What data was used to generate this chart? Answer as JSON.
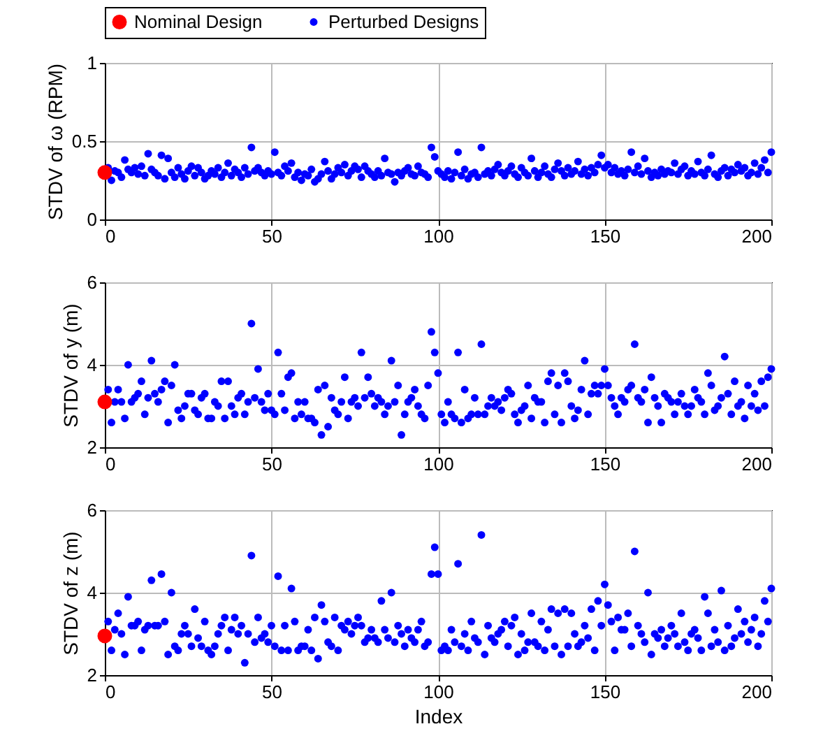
{
  "chart_data": [
    {
      "type": "scatter",
      "ylabel": "STDV of ω (RPM)",
      "xlim": [
        0,
        200
      ],
      "xticks": [
        0,
        50,
        100,
        150,
        200
      ],
      "ylim": [
        0,
        1
      ],
      "yticks": [
        0,
        0.5,
        1
      ],
      "grid": true,
      "legend": "top",
      "marker": "circle",
      "series": [
        {
          "name": "Nominal Design",
          "color": "#ff0000",
          "x": [
            0
          ],
          "values": [
            0.3
          ]
        },
        {
          "name": "Perturbed Designs",
          "color": "#0000ff",
          "x": [
            1,
            2,
            3,
            4,
            5,
            6,
            7,
            8,
            9,
            10,
            11,
            12,
            13,
            14,
            15,
            16,
            17,
            18,
            19,
            20,
            21,
            22,
            23,
            24,
            25,
            26,
            27,
            28,
            29,
            30,
            31,
            32,
            33,
            34,
            35,
            36,
            37,
            38,
            39,
            40,
            41,
            42,
            43,
            44,
            45,
            46,
            47,
            48,
            49,
            50,
            51,
            52,
            53,
            54,
            55,
            56,
            57,
            58,
            59,
            60,
            61,
            62,
            63,
            64,
            65,
            66,
            67,
            68,
            69,
            70,
            71,
            72,
            73,
            74,
            75,
            76,
            77,
            78,
            79,
            80,
            81,
            82,
            83,
            84,
            85,
            86,
            87,
            88,
            89,
            90,
            91,
            92,
            93,
            94,
            95,
            96,
            97,
            98,
            99,
            100,
            101,
            102,
            103,
            104,
            105,
            106,
            107,
            108,
            109,
            110,
            111,
            112,
            113,
            114,
            115,
            116,
            117,
            118,
            119,
            120,
            121,
            122,
            123,
            124,
            125,
            126,
            127,
            128,
            129,
            130,
            131,
            132,
            133,
            134,
            135,
            136,
            137,
            138,
            139,
            140,
            141,
            142,
            143,
            144,
            145,
            146,
            147,
            148,
            149,
            150,
            151,
            152,
            153,
            154,
            155,
            156,
            157,
            158,
            159,
            160,
            161,
            162,
            163,
            164,
            165,
            166,
            167,
            168,
            169,
            170,
            171,
            172,
            173,
            174,
            175,
            176,
            177,
            178,
            179,
            180,
            181,
            182,
            183,
            184,
            185,
            186,
            187,
            188,
            189,
            190,
            191,
            192,
            193,
            194,
            195,
            196,
            197,
            198,
            199,
            200
          ],
          "values": [
            0.33,
            0.25,
            0.31,
            0.3,
            0.27,
            0.38,
            0.32,
            0.3,
            0.33,
            0.29,
            0.34,
            0.28,
            0.42,
            0.32,
            0.3,
            0.28,
            0.41,
            0.26,
            0.39,
            0.3,
            0.27,
            0.33,
            0.29,
            0.26,
            0.31,
            0.34,
            0.28,
            0.33,
            0.3,
            0.26,
            0.28,
            0.31,
            0.29,
            0.33,
            0.27,
            0.3,
            0.36,
            0.28,
            0.32,
            0.3,
            0.27,
            0.33,
            0.29,
            0.46,
            0.31,
            0.33,
            0.3,
            0.28,
            0.31,
            0.29,
            0.43,
            0.3,
            0.28,
            0.34,
            0.31,
            0.36,
            0.27,
            0.3,
            0.25,
            0.29,
            0.28,
            0.32,
            0.24,
            0.26,
            0.29,
            0.37,
            0.31,
            0.26,
            0.29,
            0.33,
            0.3,
            0.35,
            0.28,
            0.31,
            0.34,
            0.32,
            0.27,
            0.34,
            0.31,
            0.29,
            0.27,
            0.31,
            0.28,
            0.39,
            0.3,
            0.29,
            0.24,
            0.3,
            0.28,
            0.31,
            0.33,
            0.29,
            0.28,
            0.34,
            0.3,
            0.29,
            0.27,
            0.46,
            0.4,
            0.31,
            0.29,
            0.27,
            0.31,
            0.26,
            0.3,
            0.43,
            0.28,
            0.32,
            0.26,
            0.29,
            0.3,
            0.27,
            0.46,
            0.29,
            0.31,
            0.28,
            0.32,
            0.35,
            0.3,
            0.28,
            0.31,
            0.34,
            0.29,
            0.27,
            0.33,
            0.3,
            0.28,
            0.39,
            0.31,
            0.27,
            0.3,
            0.34,
            0.29,
            0.27,
            0.32,
            0.36,
            0.31,
            0.28,
            0.33,
            0.29,
            0.31,
            0.37,
            0.29,
            0.32,
            0.28,
            0.33,
            0.3,
            0.35,
            0.41,
            0.33,
            0.35,
            0.3,
            0.33,
            0.29,
            0.31,
            0.28,
            0.32,
            0.43,
            0.3,
            0.34,
            0.29,
            0.39,
            0.31,
            0.27,
            0.3,
            0.28,
            0.32,
            0.29,
            0.31,
            0.3,
            0.36,
            0.29,
            0.32,
            0.34,
            0.28,
            0.31,
            0.29,
            0.37,
            0.3,
            0.28,
            0.32,
            0.41,
            0.29,
            0.27,
            0.31,
            0.33,
            0.28,
            0.32,
            0.3,
            0.35,
            0.31,
            0.33,
            0.28,
            0.3,
            0.36,
            0.29,
            0.33,
            0.38,
            0.3,
            0.43
          ]
        }
      ]
    },
    {
      "type": "scatter",
      "ylabel": "STDV of y (m)",
      "xlim": [
        0,
        200
      ],
      "xticks": [
        0,
        50,
        100,
        150,
        200
      ],
      "ylim": [
        2,
        6
      ],
      "yticks": [
        2,
        4,
        6
      ],
      "grid": true,
      "marker": "circle",
      "series": [
        {
          "color": "#ff0000",
          "x": [
            0
          ],
          "values": [
            3.1
          ]
        },
        {
          "color": "#0000ff",
          "x": [
            1,
            2,
            3,
            4,
            5,
            6,
            7,
            8,
            9,
            10,
            11,
            12,
            13,
            14,
            15,
            16,
            17,
            18,
            19,
            20,
            21,
            22,
            23,
            24,
            25,
            26,
            27,
            28,
            29,
            30,
            31,
            32,
            33,
            34,
            35,
            36,
            37,
            38,
            39,
            40,
            41,
            42,
            43,
            44,
            45,
            46,
            47,
            48,
            49,
            50,
            51,
            52,
            53,
            54,
            55,
            56,
            57,
            58,
            59,
            60,
            61,
            62,
            63,
            64,
            65,
            66,
            67,
            68,
            69,
            70,
            71,
            72,
            73,
            74,
            75,
            76,
            77,
            78,
            79,
            80,
            81,
            82,
            83,
            84,
            85,
            86,
            87,
            88,
            89,
            90,
            91,
            92,
            93,
            94,
            95,
            96,
            97,
            98,
            99,
            100,
            101,
            102,
            103,
            104,
            105,
            106,
            107,
            108,
            109,
            110,
            111,
            112,
            113,
            114,
            115,
            116,
            117,
            118,
            119,
            120,
            121,
            122,
            123,
            124,
            125,
            126,
            127,
            128,
            129,
            130,
            131,
            132,
            133,
            134,
            135,
            136,
            137,
            138,
            139,
            140,
            141,
            142,
            143,
            144,
            145,
            146,
            147,
            148,
            149,
            150,
            151,
            152,
            153,
            154,
            155,
            156,
            157,
            158,
            159,
            160,
            161,
            162,
            163,
            164,
            165,
            166,
            167,
            168,
            169,
            170,
            171,
            172,
            173,
            174,
            175,
            176,
            177,
            178,
            179,
            180,
            181,
            182,
            183,
            184,
            185,
            186,
            187,
            188,
            189,
            190,
            191,
            192,
            193,
            194,
            195,
            196,
            197,
            198,
            199,
            200
          ],
          "values": [
            3.4,
            2.6,
            3.1,
            3.4,
            3.1,
            2.7,
            4.0,
            3.1,
            3.2,
            3.3,
            3.6,
            2.8,
            3.2,
            4.1,
            3.3,
            3.1,
            3.4,
            3.6,
            2.6,
            3.5,
            4.0,
            2.9,
            2.7,
            3.0,
            3.3,
            3.3,
            2.9,
            2.8,
            3.2,
            3.3,
            2.7,
            2.7,
            3.1,
            3.0,
            3.6,
            2.7,
            3.6,
            3.0,
            2.8,
            3.2,
            3.3,
            2.8,
            3.1,
            5.0,
            3.2,
            3.9,
            3.1,
            2.9,
            3.3,
            2.9,
            2.8,
            4.3,
            3.3,
            2.9,
            3.7,
            3.8,
            2.7,
            3.1,
            2.8,
            3.1,
            2.7,
            2.7,
            2.6,
            3.4,
            2.3,
            3.5,
            2.5,
            3.2,
            2.9,
            2.8,
            3.1,
            3.7,
            2.7,
            3.1,
            3.2,
            3.0,
            4.3,
            3.2,
            3.7,
            3.3,
            3.0,
            3.2,
            3.1,
            2.8,
            3.0,
            4.1,
            3.1,
            3.5,
            2.3,
            2.8,
            3.1,
            3.2,
            3.4,
            3.0,
            2.8,
            2.7,
            3.5,
            4.8,
            4.3,
            3.8,
            2.8,
            2.6,
            3.1,
            2.8,
            2.7,
            4.3,
            2.6,
            3.4,
            2.7,
            2.8,
            3.2,
            2.8,
            4.5,
            2.8,
            3.0,
            3.2,
            3.0,
            3.1,
            2.9,
            3.2,
            3.4,
            3.3,
            2.8,
            2.6,
            2.9,
            3.0,
            3.5,
            2.7,
            3.2,
            3.1,
            3.1,
            2.6,
            3.6,
            3.8,
            2.8,
            3.5,
            2.6,
            3.8,
            3.6,
            3.0,
            2.7,
            2.9,
            3.4,
            4.1,
            2.8,
            3.3,
            3.5,
            3.3,
            3.5,
            3.9,
            3.5,
            3.2,
            3.0,
            2.8,
            3.2,
            3.1,
            3.4,
            3.5,
            4.5,
            3.2,
            3.1,
            3.4,
            2.6,
            3.7,
            3.2,
            3.0,
            2.6,
            3.3,
            3.2,
            3.1,
            2.8,
            3.1,
            3.3,
            3.0,
            2.8,
            3.0,
            3.4,
            3.2,
            3.1,
            2.8,
            3.8,
            3.5,
            2.9,
            3.0,
            3.2,
            4.2,
            3.3,
            2.8,
            3.6,
            3.0,
            3.1,
            2.7,
            3.5,
            3.0,
            3.3,
            2.9,
            3.6,
            3.0,
            3.7,
            3.9
          ]
        }
      ]
    },
    {
      "type": "scatter",
      "xlabel": "Index",
      "ylabel": "STDV of z (m)",
      "xlim": [
        0,
        200
      ],
      "xticks": [
        0,
        50,
        100,
        150,
        200
      ],
      "ylim": [
        2,
        6
      ],
      "yticks": [
        2,
        4,
        6
      ],
      "grid": true,
      "marker": "circle",
      "series": [
        {
          "color": "#ff0000",
          "x": [
            0
          ],
          "values": [
            2.95
          ]
        },
        {
          "color": "#0000ff",
          "x": [
            1,
            2,
            3,
            4,
            5,
            6,
            7,
            8,
            9,
            10,
            11,
            12,
            13,
            14,
            15,
            16,
            17,
            18,
            19,
            20,
            21,
            22,
            23,
            24,
            25,
            26,
            27,
            28,
            29,
            30,
            31,
            32,
            33,
            34,
            35,
            36,
            37,
            38,
            39,
            40,
            41,
            42,
            43,
            44,
            45,
            46,
            47,
            48,
            49,
            50,
            51,
            52,
            53,
            54,
            55,
            56,
            57,
            58,
            59,
            60,
            61,
            62,
            63,
            64,
            65,
            66,
            67,
            68,
            69,
            70,
            71,
            72,
            73,
            74,
            75,
            76,
            77,
            78,
            79,
            80,
            81,
            82,
            83,
            84,
            85,
            86,
            87,
            88,
            89,
            90,
            91,
            92,
            93,
            94,
            95,
            96,
            97,
            98,
            99,
            100,
            101,
            102,
            103,
            104,
            105,
            106,
            107,
            108,
            109,
            110,
            111,
            112,
            113,
            114,
            115,
            116,
            117,
            118,
            119,
            120,
            121,
            122,
            123,
            124,
            125,
            126,
            127,
            128,
            129,
            130,
            131,
            132,
            133,
            134,
            135,
            136,
            137,
            138,
            139,
            140,
            141,
            142,
            143,
            144,
            145,
            146,
            147,
            148,
            149,
            150,
            151,
            152,
            153,
            154,
            155,
            156,
            157,
            158,
            159,
            160,
            161,
            162,
            163,
            164,
            165,
            166,
            167,
            168,
            169,
            170,
            171,
            172,
            173,
            174,
            175,
            176,
            177,
            178,
            179,
            180,
            181,
            182,
            183,
            184,
            185,
            186,
            187,
            188,
            189,
            190,
            191,
            192,
            193,
            194,
            195,
            196,
            197,
            198,
            199,
            200
          ],
          "values": [
            3.3,
            2.6,
            3.1,
            3.5,
            3.0,
            2.5,
            3.9,
            3.2,
            3.2,
            3.3,
            2.6,
            3.1,
            3.2,
            4.3,
            3.2,
            3.2,
            4.45,
            3.3,
            2.5,
            4.0,
            2.7,
            2.6,
            3.0,
            3.2,
            3.0,
            2.7,
            3.6,
            2.9,
            2.7,
            3.3,
            2.6,
            2.5,
            2.7,
            3.0,
            3.2,
            3.4,
            2.6,
            3.1,
            3.4,
            3.0,
            3.2,
            2.3,
            3.0,
            4.9,
            2.8,
            3.4,
            2.9,
            3.0,
            2.8,
            3.2,
            2.7,
            4.4,
            2.6,
            3.2,
            2.6,
            4.1,
            3.3,
            2.6,
            2.7,
            2.7,
            3.1,
            2.6,
            3.4,
            2.4,
            3.7,
            3.3,
            2.8,
            2.7,
            3.4,
            2.6,
            3.2,
            3.1,
            3.3,
            3.0,
            3.2,
            3.4,
            3.2,
            2.8,
            2.9,
            3.1,
            2.9,
            2.8,
            3.8,
            3.1,
            2.9,
            4.0,
            2.8,
            3.2,
            3.0,
            2.7,
            3.1,
            2.9,
            2.8,
            3.1,
            3.3,
            2.7,
            2.8,
            4.45,
            5.1,
            4.45,
            2.6,
            2.7,
            2.6,
            3.1,
            2.8,
            4.7,
            2.7,
            3.0,
            2.6,
            3.3,
            2.9,
            2.8,
            5.4,
            2.5,
            3.2,
            2.9,
            2.8,
            3.0,
            3.1,
            3.3,
            2.7,
            3.2,
            3.4,
            2.5,
            3.0,
            2.6,
            2.8,
            3.5,
            2.8,
            2.7,
            3.3,
            2.6,
            3.1,
            3.6,
            2.7,
            3.5,
            2.5,
            3.6,
            2.7,
            3.5,
            3.0,
            2.7,
            2.8,
            3.2,
            2.9,
            3.6,
            2.6,
            3.8,
            3.2,
            4.2,
            3.7,
            3.3,
            2.6,
            3.4,
            3.1,
            3.1,
            3.5,
            2.7,
            5.0,
            3.2,
            3.0,
            2.8,
            4.0,
            2.5,
            3.0,
            2.9,
            3.1,
            2.7,
            2.9,
            3.2,
            3.0,
            2.7,
            3.5,
            2.8,
            2.6,
            3.0,
            3.1,
            2.9,
            2.6,
            3.9,
            3.5,
            2.7,
            3.1,
            2.8,
            4.05,
            2.6,
            3.2,
            2.7,
            2.9,
            3.6,
            3.0,
            3.3,
            2.8,
            3.1,
            3.4,
            2.7,
            3.0,
            3.8,
            3.3,
            4.1
          ]
        }
      ]
    }
  ]
}
